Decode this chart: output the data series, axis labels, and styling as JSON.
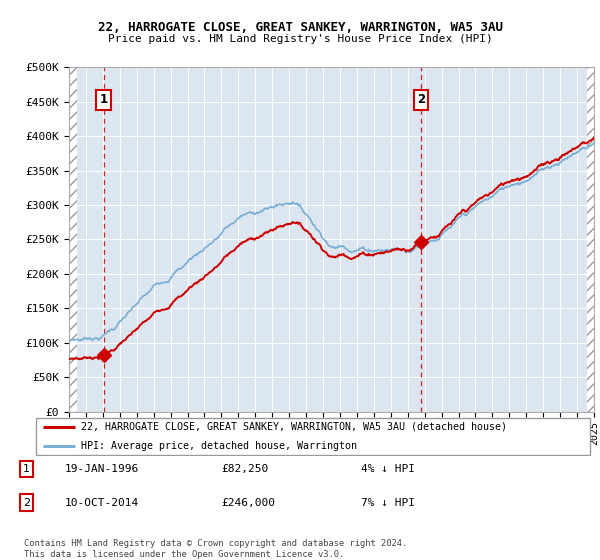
{
  "title1": "22, HARROGATE CLOSE, GREAT SANKEY, WARRINGTON, WA5 3AU",
  "title2": "Price paid vs. HM Land Registry's House Price Index (HPI)",
  "ylim": [
    0,
    500000
  ],
  "yticks": [
    0,
    50000,
    100000,
    150000,
    200000,
    250000,
    300000,
    350000,
    400000,
    450000,
    500000
  ],
  "ytick_labels": [
    "£0",
    "£50K",
    "£100K",
    "£150K",
    "£200K",
    "£250K",
    "£300K",
    "£350K",
    "£400K",
    "£450K",
    "£500K"
  ],
  "sale1_date": 1996.05,
  "sale1_price": 82250,
  "sale2_date": 2014.78,
  "sale2_price": 246000,
  "hpi_color": "#7bafd4",
  "price_color": "#cc0000",
  "background_color": "#dce6f1",
  "legend_label1": "22, HARROGATE CLOSE, GREAT SANKEY, WARRINGTON, WA5 3AU (detached house)",
  "legend_label2": "HPI: Average price, detached house, Warrington",
  "annotation1_date": "19-JAN-1996",
  "annotation1_price": "£82,250",
  "annotation1_hpi": "4% ↓ HPI",
  "annotation2_date": "10-OCT-2014",
  "annotation2_price": "£246,000",
  "annotation2_hpi": "7% ↓ HPI",
  "footer": "Contains HM Land Registry data © Crown copyright and database right 2024.\nThis data is licensed under the Open Government Licence v3.0.",
  "xmin": 1994,
  "xmax": 2025
}
